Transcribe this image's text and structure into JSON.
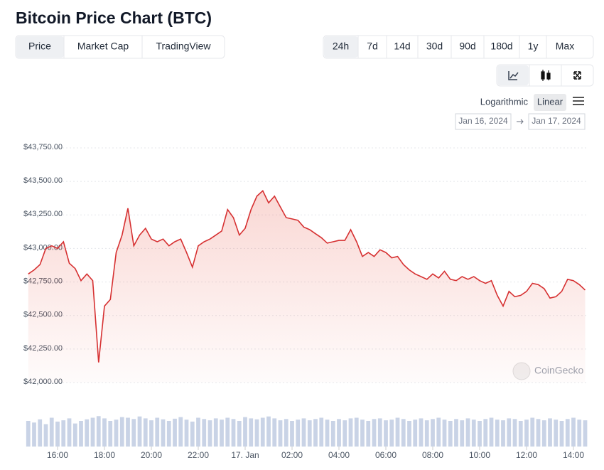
{
  "header": {
    "title": "Bitcoin Price Chart (BTC)"
  },
  "controls": {
    "tabs": [
      "Price",
      "Market Cap",
      "TradingView"
    ],
    "ranges": [
      "24h",
      "7d",
      "14d",
      "30d",
      "90d",
      "180d",
      "1y",
      "Max"
    ],
    "scales": [
      "Logarithmic",
      "Linear"
    ],
    "date_from": "Jan 16, 2024",
    "date_to": "Jan 17, 2024",
    "watermark": "CoinGecko"
  },
  "chart_data": {
    "type": "line",
    "color": "#d63031",
    "grid": true,
    "x": [
      "14:45",
      "15:00",
      "15:15",
      "15:30",
      "15:45",
      "16:00",
      "16:15",
      "16:30",
      "16:45",
      "17:00",
      "17:15",
      "17:30",
      "17:45",
      "18:00",
      "18:15",
      "18:30",
      "18:45",
      "19:00",
      "19:15",
      "19:30",
      "19:45",
      "20:00",
      "20:15",
      "20:30",
      "20:45",
      "21:00",
      "21:15",
      "21:30",
      "21:45",
      "22:00",
      "22:15",
      "22:30",
      "22:45",
      "23:00",
      "23:15",
      "23:30",
      "23:45",
      "00:00",
      "00:15",
      "00:30",
      "00:45",
      "01:00",
      "01:15",
      "01:30",
      "01:45",
      "02:00",
      "02:15",
      "02:30",
      "02:45",
      "03:00",
      "03:15",
      "03:30",
      "03:45",
      "04:00",
      "04:15",
      "04:30",
      "04:45",
      "05:00",
      "05:15",
      "05:30",
      "05:45",
      "06:00",
      "06:15",
      "06:30",
      "06:45",
      "07:00",
      "07:15",
      "07:30",
      "07:45",
      "08:00",
      "08:15",
      "08:30",
      "08:45",
      "09:00",
      "09:15",
      "09:30",
      "09:45",
      "10:00",
      "10:15",
      "10:30",
      "10:45",
      "11:00",
      "11:15",
      "11:30",
      "11:45",
      "12:00",
      "12:15",
      "12:30",
      "12:45",
      "13:00",
      "13:15",
      "13:30",
      "13:45",
      "14:00",
      "14:15",
      "14:30"
    ],
    "values": [
      42810,
      42840,
      42880,
      43000,
      43020,
      43000,
      43050,
      42890,
      42850,
      42760,
      42810,
      42760,
      42150,
      42570,
      42620,
      42970,
      43100,
      43300,
      43020,
      43100,
      43150,
      43070,
      43050,
      43070,
      43020,
      43050,
      43070,
      42970,
      42860,
      43020,
      43050,
      43070,
      43100,
      43130,
      43290,
      43230,
      43100,
      43150,
      43290,
      43390,
      43430,
      43340,
      43390,
      43310,
      43230,
      43220,
      43210,
      43160,
      43140,
      43110,
      43080,
      43040,
      43050,
      43060,
      43060,
      43140,
      43050,
      42940,
      42970,
      42940,
      42990,
      42970,
      42930,
      42940,
      42880,
      42840,
      42810,
      42790,
      42770,
      42810,
      42780,
      42830,
      42770,
      42760,
      42790,
      42770,
      42790,
      42760,
      42740,
      42760,
      42650,
      42570,
      42680,
      42640,
      42650,
      42680,
      42740,
      42730,
      42700,
      42630,
      42640,
      42680,
      42770,
      42760,
      42730,
      42690
    ],
    "volumes": [
      80,
      75,
      85,
      70,
      90,
      78,
      82,
      88,
      72,
      80,
      85,
      90,
      95,
      88,
      80,
      84,
      92,
      90,
      86,
      94,
      88,
      82,
      90,
      85,
      80,
      87,
      92,
      84,
      78,
      90,
      86,
      82,
      88,
      84,
      90,
      86,
      80,
      92,
      88,
      85,
      90,
      94,
      88,
      82,
      86,
      80,
      84,
      88,
      82,
      86,
      90,
      84,
      80,
      86,
      82,
      88,
      90,
      84,
      80,
      86,
      88,
      82,
      84,
      90,
      86,
      80,
      84,
      88,
      82,
      86,
      90,
      84,
      80,
      86,
      82,
      88,
      84,
      80,
      86,
      90,
      84,
      82,
      88,
      86,
      80,
      84,
      90,
      86,
      82,
      88,
      84,
      80,
      86,
      90,
      84,
      82
    ],
    "vlim": [
      0,
      100
    ],
    "ylim": [
      42000,
      43750
    ],
    "yticks": [
      {
        "value": 42000,
        "label": "$42,000.00"
      },
      {
        "value": 42250,
        "label": "$42,250.00"
      },
      {
        "value": 42500,
        "label": "$42,500.00"
      },
      {
        "value": 42750,
        "label": "$42,750.00"
      },
      {
        "value": 43000,
        "label": "$43,000.00"
      },
      {
        "value": 43250,
        "label": "$43,250.00"
      },
      {
        "value": 43500,
        "label": "$43,500.00"
      },
      {
        "value": 43750,
        "label": "$43,750.00"
      }
    ],
    "xticks": [
      "16:00",
      "18:00",
      "20:00",
      "22:00",
      {
        "value": "00:00",
        "label": "17. Jan"
      },
      "02:00",
      "04:00",
      "06:00",
      "08:00",
      "10:00",
      "12:00",
      "14:00"
    ]
  }
}
